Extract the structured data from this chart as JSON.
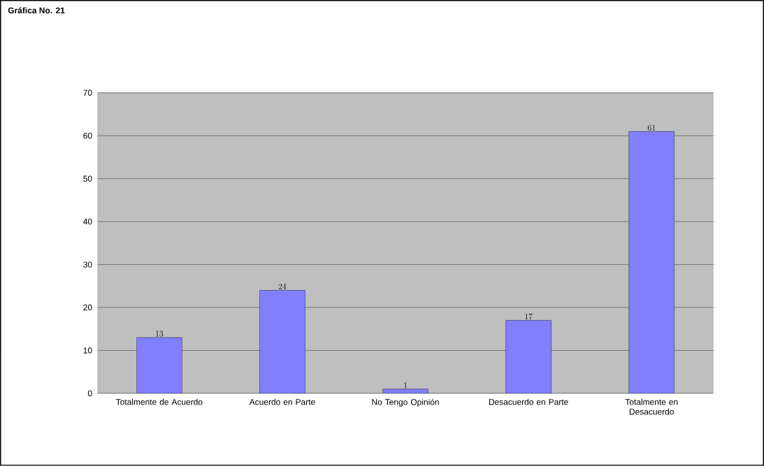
{
  "chart_data": {
    "type": "bar",
    "title": "Gráfica No. 21",
    "categories": [
      "Totalmente de Acuerdo",
      "Acuerdo en Parte",
      "No Tengo Opinión",
      "Desacuerdo en Parte",
      "Totalmente en Desacuerdo"
    ],
    "values": [
      13,
      24,
      1,
      17,
      61
    ],
    "color": "#8080ff",
    "ylim": [
      0,
      70
    ],
    "yticks": [
      0,
      10,
      20,
      30,
      40,
      50,
      60,
      70
    ],
    "grid": "y",
    "data_labels": true
  }
}
